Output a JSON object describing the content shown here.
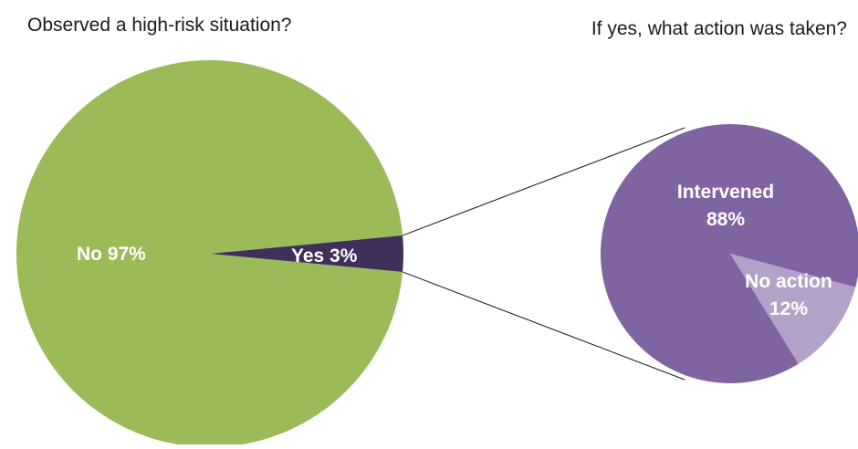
{
  "chart_data": [
    {
      "type": "pie",
      "title": "Observed a high-risk situation?",
      "slices": [
        {
          "label": "No",
          "value": 97,
          "display": "No 97%",
          "color": "#9BBB59"
        },
        {
          "label": "Yes",
          "value": 3,
          "display": "Yes 3%",
          "color": "#3F2F5A"
        }
      ]
    },
    {
      "type": "pie",
      "title": "If yes, what action was taken?",
      "slices": [
        {
          "label": "Intervened",
          "value": 88,
          "display_lines": [
            "Intervened",
            "88%"
          ],
          "color": "#8064A2"
        },
        {
          "label": "No action",
          "value": 12,
          "display_lines": [
            "No action",
            "12%"
          ],
          "color": "#B3A2C7"
        }
      ]
    }
  ]
}
